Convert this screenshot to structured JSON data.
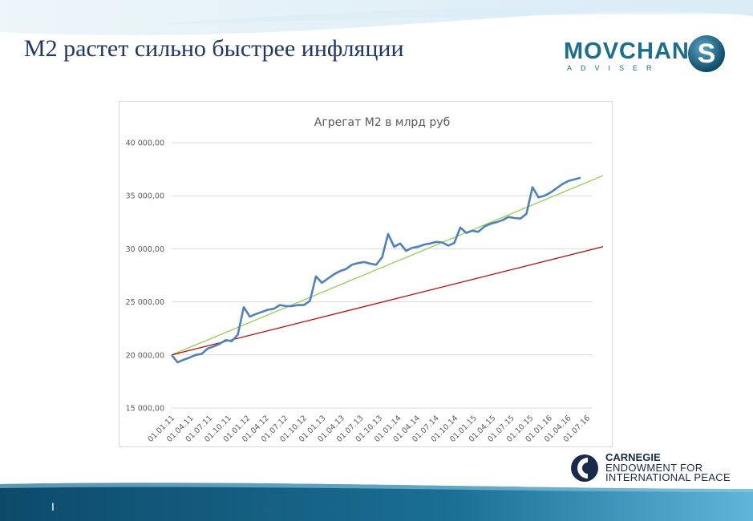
{
  "slide": {
    "title": "M2 растет сильно быстрее инфляции",
    "page_number": "I"
  },
  "logo": {
    "name": "MOVCHAN",
    "letter": "S",
    "sub": "ADVISER"
  },
  "carnegie": {
    "line1": "CARNEGIE",
    "line2": "ENDOWMENT FOR",
    "line3": "INTERNATIONAL PEACE"
  },
  "colors": {
    "title": "#1f3864",
    "series": "#4f81bd",
    "trend": "#92d050",
    "inflation": "#c00000",
    "band": "#0f4d6b"
  },
  "chart_data": {
    "type": "line",
    "title": "Агрегат М2 в млрд руб",
    "xlabel": "",
    "ylabel": "",
    "ylim": [
      15000,
      40000
    ],
    "yticks": [
      "15 000,00",
      "20 000,00",
      "25 000,00",
      "30 000,00",
      "35 000,00",
      "40 000,00"
    ],
    "ytick_values": [
      15000,
      20000,
      25000,
      30000,
      35000,
      40000
    ],
    "grid": true,
    "legend": "none",
    "xtick_labels": [
      "01.01.11",
      "01.04.11",
      "01.07.11",
      "01.10.11",
      "01.01.12",
      "01.04.12",
      "01.07.12",
      "01.10.12",
      "01.01.13",
      "01.04.13",
      "01.07.13",
      "01.10.13",
      "01.01.14",
      "01.04.14",
      "01.07.14",
      "01.10.14",
      "01.01.15",
      "01.04.15",
      "01.07.15",
      "01.10.15",
      "01.01.16",
      "01.04.16",
      "01.07.16"
    ],
    "series": [
      {
        "values": [
          20000,
          19300,
          19550,
          19750,
          20000,
          20100,
          20600,
          20800,
          21050,
          21400,
          21300,
          21900,
          24500,
          23600,
          23850,
          24050,
          24250,
          24350,
          24700,
          24600,
          24600,
          24700,
          24700,
          25100,
          27400,
          26800,
          27200,
          27600,
          27900,
          28100,
          28500,
          28650,
          28750,
          28600,
          28500,
          29200,
          31400,
          30200,
          30500,
          29800,
          30100,
          30200,
          30400,
          30500,
          30650,
          30600,
          30300,
          30550,
          32000,
          31500,
          31700,
          31600,
          32100,
          32350,
          32500,
          32700,
          33000,
          32900,
          32850,
          33300,
          35800,
          34850,
          35000,
          35300,
          35700,
          36100,
          36400,
          36550,
          36700
        ]
      },
      {
        "values": [
          20000,
          36900
        ]
      },
      {
        "values": [
          20000,
          30200
        ]
      }
    ]
  }
}
